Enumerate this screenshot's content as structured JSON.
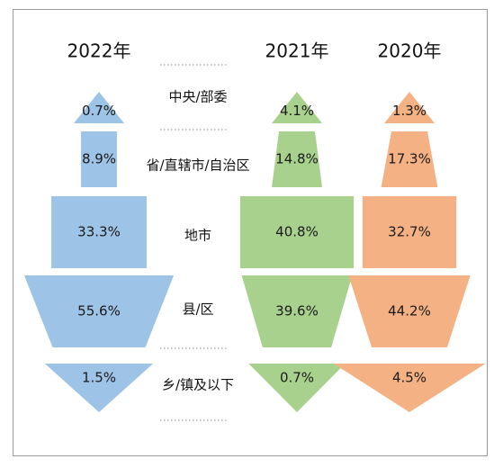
{
  "chart_data": {
    "type": "funnel",
    "title": "",
    "categories": [
      "中央/部委",
      "省/直辖市/自治区",
      "地市",
      "县/区",
      "乡/镇及以下"
    ],
    "series": [
      {
        "name": "2022年",
        "color": "#9dc3e6",
        "values": [
          0.7,
          8.9,
          33.3,
          55.6,
          1.5
        ],
        "labels": [
          "0.7%",
          "8.9%",
          "33.3%",
          "55.6%",
          "1.5%"
        ]
      },
      {
        "name": "2021年",
        "color": "#a9d18e",
        "values": [
          4.1,
          14.8,
          40.8,
          39.6,
          0.7
        ],
        "labels": [
          "4.1%",
          "14.8%",
          "40.8%",
          "39.6%",
          "0.7%"
        ]
      },
      {
        "name": "2020年",
        "color": "#f4b183",
        "values": [
          1.3,
          17.3,
          32.7,
          44.2,
          4.5
        ],
        "labels": [
          "1.3%",
          "17.3%",
          "32.7%",
          "44.2%",
          "4.5%"
        ]
      }
    ],
    "unit": "%"
  }
}
